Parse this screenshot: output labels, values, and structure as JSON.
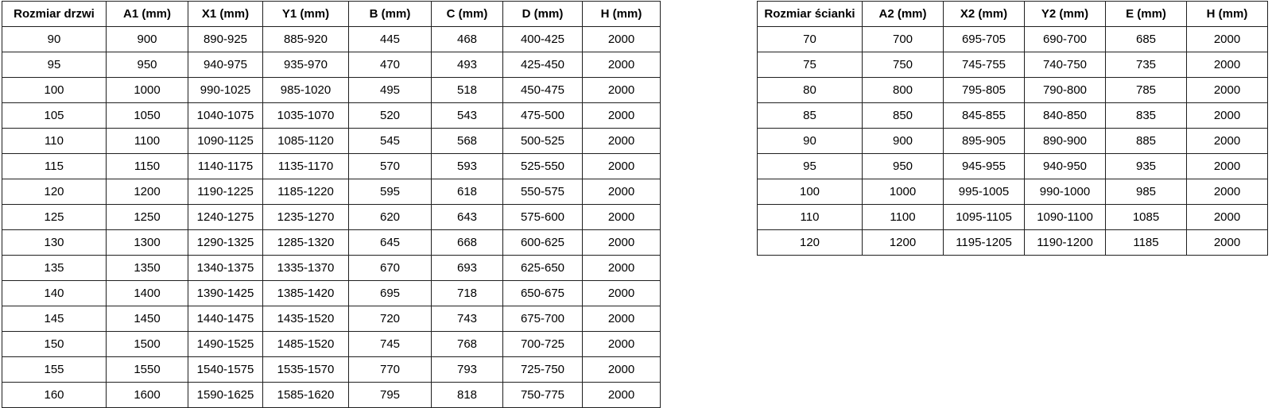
{
  "page": {
    "background_color": "#ffffff",
    "border_color": "#1f1f1f",
    "text_color": "#000000"
  },
  "tables": [
    {
      "name": "door-size-table",
      "headers": [
        "Rozmiar drzwi",
        "A1 (mm)",
        "X1 (mm)",
        "Y1 (mm)",
        "B (mm)",
        "C (mm)",
        "D (mm)",
        "H (mm)"
      ],
      "rows": [
        [
          "90",
          "900",
          "890-925",
          "885-920",
          "445",
          "468",
          "400-425",
          "2000"
        ],
        [
          "95",
          "950",
          "940-975",
          "935-970",
          "470",
          "493",
          "425-450",
          "2000"
        ],
        [
          "100",
          "1000",
          "990-1025",
          "985-1020",
          "495",
          "518",
          "450-475",
          "2000"
        ],
        [
          "105",
          "1050",
          "1040-1075",
          "1035-1070",
          "520",
          "543",
          "475-500",
          "2000"
        ],
        [
          "110",
          "1100",
          "1090-1125",
          "1085-1120",
          "545",
          "568",
          "500-525",
          "2000"
        ],
        [
          "115",
          "1150",
          "1140-1175",
          "1135-1170",
          "570",
          "593",
          "525-550",
          "2000"
        ],
        [
          "120",
          "1200",
          "1190-1225",
          "1185-1220",
          "595",
          "618",
          "550-575",
          "2000"
        ],
        [
          "125",
          "1250",
          "1240-1275",
          "1235-1270",
          "620",
          "643",
          "575-600",
          "2000"
        ],
        [
          "130",
          "1300",
          "1290-1325",
          "1285-1320",
          "645",
          "668",
          "600-625",
          "2000"
        ],
        [
          "135",
          "1350",
          "1340-1375",
          "1335-1370",
          "670",
          "693",
          "625-650",
          "2000"
        ],
        [
          "140",
          "1400",
          "1390-1425",
          "1385-1420",
          "695",
          "718",
          "650-675",
          "2000"
        ],
        [
          "145",
          "1450",
          "1440-1475",
          "1435-1520",
          "720",
          "743",
          "675-700",
          "2000"
        ],
        [
          "150",
          "1500",
          "1490-1525",
          "1485-1520",
          "745",
          "768",
          "700-725",
          "2000"
        ],
        [
          "155",
          "1550",
          "1540-1575",
          "1535-1570",
          "770",
          "793",
          "725-750",
          "2000"
        ],
        [
          "160",
          "1600",
          "1590-1625",
          "1585-1620",
          "795",
          "818",
          "750-775",
          "2000"
        ]
      ]
    },
    {
      "name": "wall-size-table",
      "headers": [
        "Rozmiar ścianki",
        "A2 (mm)",
        "X2 (mm)",
        "Y2 (mm)",
        "E (mm)",
        "H (mm)"
      ],
      "rows": [
        [
          "70",
          "700",
          "695-705",
          "690-700",
          "685",
          "2000"
        ],
        [
          "75",
          "750",
          "745-755",
          "740-750",
          "735",
          "2000"
        ],
        [
          "80",
          "800",
          "795-805",
          "790-800",
          "785",
          "2000"
        ],
        [
          "85",
          "850",
          "845-855",
          "840-850",
          "835",
          "2000"
        ],
        [
          "90",
          "900",
          "895-905",
          "890-900",
          "885",
          "2000"
        ],
        [
          "95",
          "950",
          "945-955",
          "940-950",
          "935",
          "2000"
        ],
        [
          "100",
          "1000",
          "995-1005",
          "990-1000",
          "985",
          "2000"
        ],
        [
          "110",
          "1100",
          "1095-1105",
          "1090-1100",
          "1085",
          "2000"
        ],
        [
          "120",
          "1200",
          "1195-1205",
          "1190-1200",
          "1185",
          "2000"
        ]
      ]
    }
  ]
}
